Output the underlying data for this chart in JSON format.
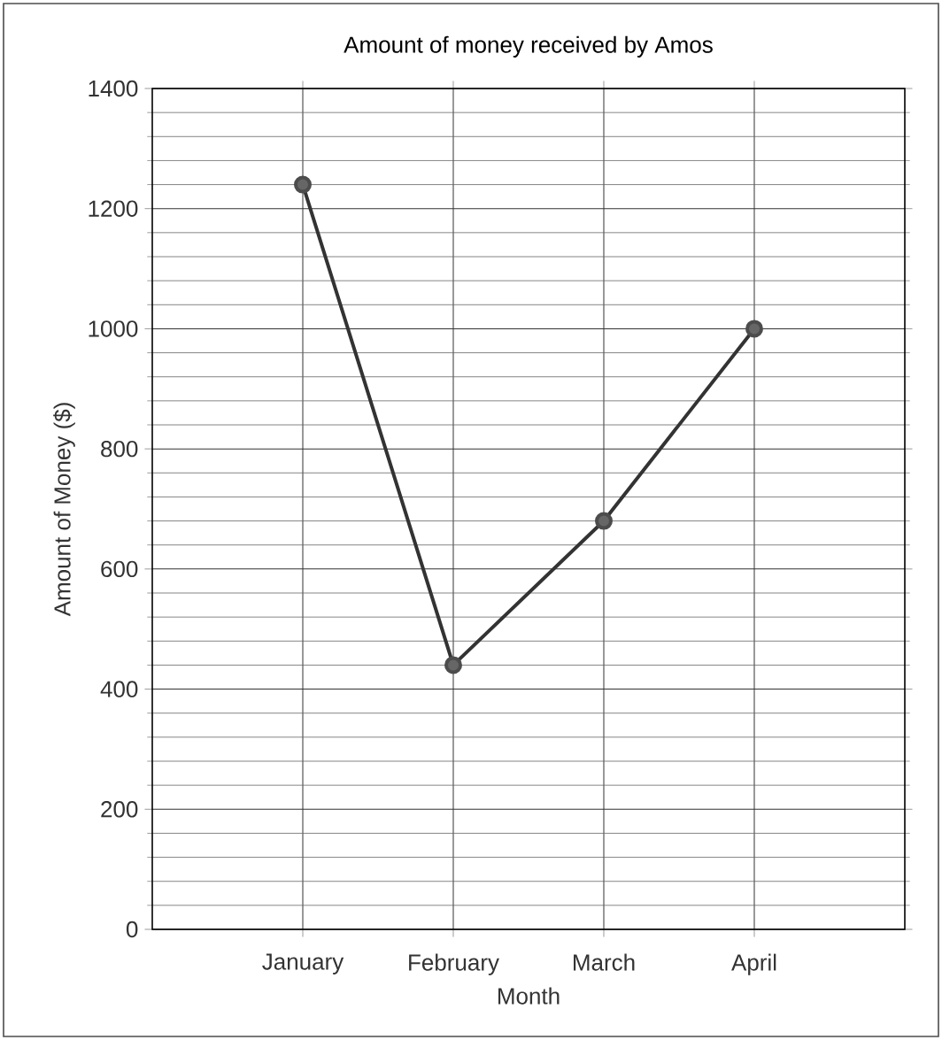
{
  "chart_data": {
    "type": "line",
    "title": "Amount of money received by Amos",
    "xlabel": "Month",
    "ylabel": "Amount of Money ($)",
    "categories": [
      "January",
      "February",
      "March",
      "April"
    ],
    "values": [
      1240,
      440,
      680,
      1000
    ],
    "color": "#333333",
    "marker": "circle",
    "line_style": "solid",
    "ylim": [
      0,
      1400
    ],
    "yticks": [
      0,
      200,
      400,
      600,
      800,
      1000,
      1200,
      1400
    ],
    "grid": true
  }
}
